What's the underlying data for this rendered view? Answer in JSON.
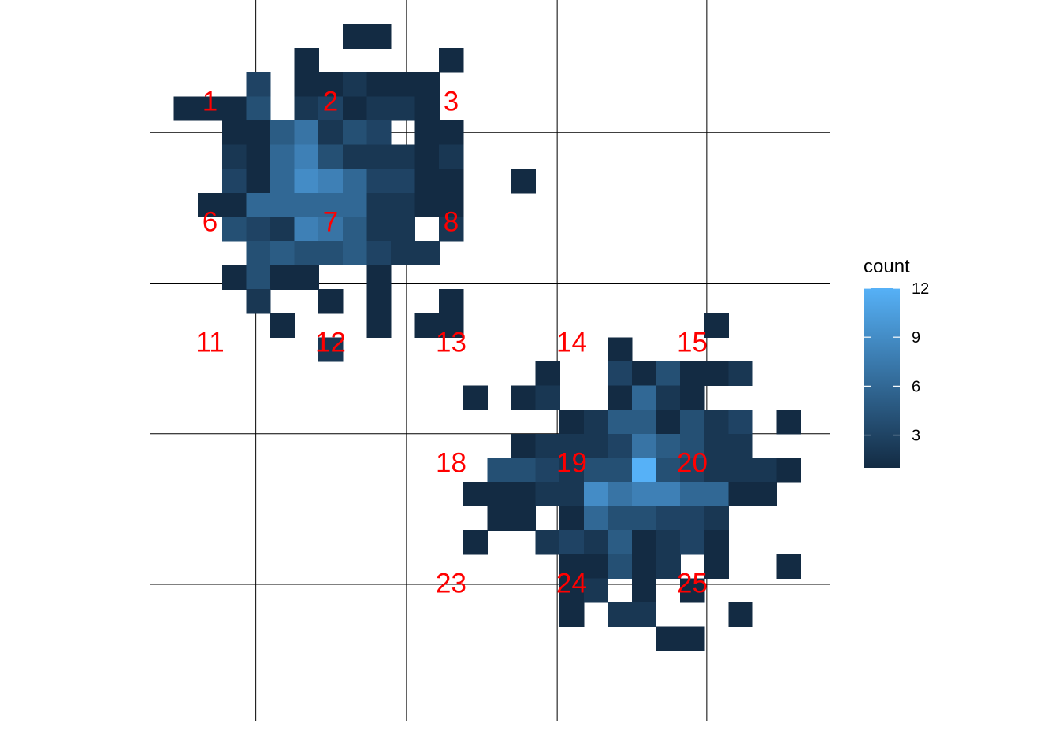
{
  "chart_data": {
    "type": "heatmap",
    "title": "",
    "xlabel": "",
    "ylabel": "",
    "axes_visible": false,
    "grid": "on",
    "x_bins": 28,
    "y_bins": 28,
    "value_range": [
      1,
      12
    ],
    "colors": {
      "low": "#132B43",
      "high": "#56B1F7",
      "label": "#ff0000",
      "grid": "#000000"
    },
    "legend": {
      "title": "count",
      "placement": "right",
      "ticks": [
        3,
        6,
        9,
        12
      ],
      "tick_labels": [
        "3",
        "6",
        "9",
        "12"
      ]
    },
    "cells": [
      {
        "col": 8,
        "row": 1,
        "value": 1
      },
      {
        "col": 9,
        "row": 1,
        "value": 1
      },
      {
        "col": 6,
        "row": 2,
        "value": 1
      },
      {
        "col": 12,
        "row": 2,
        "value": 1
      },
      {
        "col": 4,
        "row": 3,
        "value": 3
      },
      {
        "col": 6,
        "row": 3,
        "value": 1
      },
      {
        "col": 7,
        "row": 3,
        "value": 1
      },
      {
        "col": 8,
        "row": 3,
        "value": 2
      },
      {
        "col": 9,
        "row": 3,
        "value": 1
      },
      {
        "col": 10,
        "row": 3,
        "value": 1
      },
      {
        "col": 11,
        "row": 3,
        "value": 1
      },
      {
        "col": 1,
        "row": 4,
        "value": 1
      },
      {
        "col": 2,
        "row": 4,
        "value": 1
      },
      {
        "col": 3,
        "row": 4,
        "value": 1
      },
      {
        "col": 4,
        "row": 4,
        "value": 4
      },
      {
        "col": 6,
        "row": 4,
        "value": 2
      },
      {
        "col": 7,
        "row": 4,
        "value": 3
      },
      {
        "col": 8,
        "row": 4,
        "value": 1
      },
      {
        "col": 9,
        "row": 4,
        "value": 2
      },
      {
        "col": 10,
        "row": 4,
        "value": 2
      },
      {
        "col": 11,
        "row": 4,
        "value": 1
      },
      {
        "col": 3,
        "row": 5,
        "value": 1
      },
      {
        "col": 4,
        "row": 5,
        "value": 1
      },
      {
        "col": 5,
        "row": 5,
        "value": 5
      },
      {
        "col": 6,
        "row": 5,
        "value": 7
      },
      {
        "col": 7,
        "row": 5,
        "value": 2
      },
      {
        "col": 8,
        "row": 5,
        "value": 4
      },
      {
        "col": 9,
        "row": 5,
        "value": 3
      },
      {
        "col": 11,
        "row": 5,
        "value": 1
      },
      {
        "col": 12,
        "row": 5,
        "value": 1
      },
      {
        "col": 3,
        "row": 6,
        "value": 2
      },
      {
        "col": 4,
        "row": 6,
        "value": 1
      },
      {
        "col": 5,
        "row": 6,
        "value": 6
      },
      {
        "col": 6,
        "row": 6,
        "value": 8
      },
      {
        "col": 7,
        "row": 6,
        "value": 4
      },
      {
        "col": 8,
        "row": 6,
        "value": 2
      },
      {
        "col": 9,
        "row": 6,
        "value": 2
      },
      {
        "col": 10,
        "row": 6,
        "value": 2
      },
      {
        "col": 11,
        "row": 6,
        "value": 1
      },
      {
        "col": 12,
        "row": 6,
        "value": 2
      },
      {
        "col": 3,
        "row": 7,
        "value": 3
      },
      {
        "col": 4,
        "row": 7,
        "value": 1
      },
      {
        "col": 5,
        "row": 7,
        "value": 6
      },
      {
        "col": 6,
        "row": 7,
        "value": 9
      },
      {
        "col": 7,
        "row": 7,
        "value": 8
      },
      {
        "col": 8,
        "row": 7,
        "value": 6
      },
      {
        "col": 9,
        "row": 7,
        "value": 3
      },
      {
        "col": 10,
        "row": 7,
        "value": 3
      },
      {
        "col": 11,
        "row": 7,
        "value": 1
      },
      {
        "col": 12,
        "row": 7,
        "value": 1
      },
      {
        "col": 15,
        "row": 7,
        "value": 1
      },
      {
        "col": 2,
        "row": 8,
        "value": 1
      },
      {
        "col": 3,
        "row": 8,
        "value": 1
      },
      {
        "col": 4,
        "row": 8,
        "value": 6
      },
      {
        "col": 5,
        "row": 8,
        "value": 6
      },
      {
        "col": 6,
        "row": 8,
        "value": 6
      },
      {
        "col": 7,
        "row": 8,
        "value": 6
      },
      {
        "col": 8,
        "row": 8,
        "value": 6
      },
      {
        "col": 9,
        "row": 8,
        "value": 2
      },
      {
        "col": 10,
        "row": 8,
        "value": 2
      },
      {
        "col": 11,
        "row": 8,
        "value": 1
      },
      {
        "col": 12,
        "row": 8,
        "value": 1
      },
      {
        "col": 3,
        "row": 9,
        "value": 4
      },
      {
        "col": 4,
        "row": 9,
        "value": 3
      },
      {
        "col": 5,
        "row": 9,
        "value": 2
      },
      {
        "col": 6,
        "row": 9,
        "value": 8
      },
      {
        "col": 7,
        "row": 9,
        "value": 7
      },
      {
        "col": 8,
        "row": 9,
        "value": 5
      },
      {
        "col": 9,
        "row": 9,
        "value": 2
      },
      {
        "col": 10,
        "row": 9,
        "value": 2
      },
      {
        "col": 12,
        "row": 9,
        "value": 2
      },
      {
        "col": 4,
        "row": 10,
        "value": 4
      },
      {
        "col": 5,
        "row": 10,
        "value": 5
      },
      {
        "col": 6,
        "row": 10,
        "value": 4
      },
      {
        "col": 7,
        "row": 10,
        "value": 4
      },
      {
        "col": 8,
        "row": 10,
        "value": 5
      },
      {
        "col": 9,
        "row": 10,
        "value": 3
      },
      {
        "col": 10,
        "row": 10,
        "value": 2
      },
      {
        "col": 11,
        "row": 10,
        "value": 2
      },
      {
        "col": 3,
        "row": 11,
        "value": 1
      },
      {
        "col": 4,
        "row": 11,
        "value": 4
      },
      {
        "col": 5,
        "row": 11,
        "value": 1
      },
      {
        "col": 6,
        "row": 11,
        "value": 1
      },
      {
        "col": 9,
        "row": 11,
        "value": 1
      },
      {
        "col": 4,
        "row": 12,
        "value": 2
      },
      {
        "col": 7,
        "row": 12,
        "value": 1
      },
      {
        "col": 9,
        "row": 12,
        "value": 1
      },
      {
        "col": 12,
        "row": 12,
        "value": 1
      },
      {
        "col": 5,
        "row": 13,
        "value": 1
      },
      {
        "col": 9,
        "row": 13,
        "value": 1
      },
      {
        "col": 11,
        "row": 13,
        "value": 1
      },
      {
        "col": 12,
        "row": 13,
        "value": 1
      },
      {
        "col": 23,
        "row": 13,
        "value": 1
      },
      {
        "col": 7,
        "row": 14,
        "value": 2
      },
      {
        "col": 19,
        "row": 14,
        "value": 1
      },
      {
        "col": 16,
        "row": 15,
        "value": 1
      },
      {
        "col": 19,
        "row": 15,
        "value": 3
      },
      {
        "col": 20,
        "row": 15,
        "value": 1
      },
      {
        "col": 21,
        "row": 15,
        "value": 4
      },
      {
        "col": 22,
        "row": 15,
        "value": 1
      },
      {
        "col": 23,
        "row": 15,
        "value": 1
      },
      {
        "col": 24,
        "row": 15,
        "value": 2
      },
      {
        "col": 13,
        "row": 16,
        "value": 1
      },
      {
        "col": 15,
        "row": 16,
        "value": 1
      },
      {
        "col": 16,
        "row": 16,
        "value": 2
      },
      {
        "col": 19,
        "row": 16,
        "value": 1
      },
      {
        "col": 20,
        "row": 16,
        "value": 6
      },
      {
        "col": 21,
        "row": 16,
        "value": 2
      },
      {
        "col": 22,
        "row": 16,
        "value": 1
      },
      {
        "col": 17,
        "row": 17,
        "value": 1
      },
      {
        "col": 18,
        "row": 17,
        "value": 2
      },
      {
        "col": 19,
        "row": 17,
        "value": 5
      },
      {
        "col": 20,
        "row": 17,
        "value": 5
      },
      {
        "col": 21,
        "row": 17,
        "value": 1
      },
      {
        "col": 22,
        "row": 17,
        "value": 4
      },
      {
        "col": 23,
        "row": 17,
        "value": 2
      },
      {
        "col": 24,
        "row": 17,
        "value": 3
      },
      {
        "col": 26,
        "row": 17,
        "value": 1
      },
      {
        "col": 15,
        "row": 18,
        "value": 1
      },
      {
        "col": 16,
        "row": 18,
        "value": 2
      },
      {
        "col": 17,
        "row": 18,
        "value": 2
      },
      {
        "col": 18,
        "row": 18,
        "value": 2
      },
      {
        "col": 19,
        "row": 18,
        "value": 3
      },
      {
        "col": 20,
        "row": 18,
        "value": 7
      },
      {
        "col": 21,
        "row": 18,
        "value": 5
      },
      {
        "col": 22,
        "row": 18,
        "value": 4
      },
      {
        "col": 23,
        "row": 18,
        "value": 2
      },
      {
        "col": 24,
        "row": 18,
        "value": 2
      },
      {
        "col": 14,
        "row": 19,
        "value": 4
      },
      {
        "col": 15,
        "row": 19,
        "value": 4
      },
      {
        "col": 16,
        "row": 19,
        "value": 3
      },
      {
        "col": 17,
        "row": 19,
        "value": 2
      },
      {
        "col": 18,
        "row": 19,
        "value": 4
      },
      {
        "col": 19,
        "row": 19,
        "value": 4
      },
      {
        "col": 20,
        "row": 19,
        "value": 12
      },
      {
        "col": 21,
        "row": 19,
        "value": 4
      },
      {
        "col": 22,
        "row": 19,
        "value": 3
      },
      {
        "col": 23,
        "row": 19,
        "value": 2
      },
      {
        "col": 24,
        "row": 19,
        "value": 2
      },
      {
        "col": 25,
        "row": 19,
        "value": 2
      },
      {
        "col": 26,
        "row": 19,
        "value": 1
      },
      {
        "col": 13,
        "row": 20,
        "value": 1
      },
      {
        "col": 14,
        "row": 20,
        "value": 1
      },
      {
        "col": 15,
        "row": 20,
        "value": 1
      },
      {
        "col": 16,
        "row": 20,
        "value": 2
      },
      {
        "col": 17,
        "row": 20,
        "value": 2
      },
      {
        "col": 18,
        "row": 20,
        "value": 9
      },
      {
        "col": 19,
        "row": 20,
        "value": 7
      },
      {
        "col": 20,
        "row": 20,
        "value": 8
      },
      {
        "col": 21,
        "row": 20,
        "value": 8
      },
      {
        "col": 22,
        "row": 20,
        "value": 6
      },
      {
        "col": 23,
        "row": 20,
        "value": 6
      },
      {
        "col": 24,
        "row": 20,
        "value": 1
      },
      {
        "col": 25,
        "row": 20,
        "value": 1
      },
      {
        "col": 14,
        "row": 21,
        "value": 1
      },
      {
        "col": 15,
        "row": 21,
        "value": 1
      },
      {
        "col": 17,
        "row": 21,
        "value": 1
      },
      {
        "col": 18,
        "row": 21,
        "value": 6
      },
      {
        "col": 19,
        "row": 21,
        "value": 4
      },
      {
        "col": 20,
        "row": 21,
        "value": 4
      },
      {
        "col": 21,
        "row": 21,
        "value": 3
      },
      {
        "col": 22,
        "row": 21,
        "value": 3
      },
      {
        "col": 23,
        "row": 21,
        "value": 2
      },
      {
        "col": 13,
        "row": 22,
        "value": 1
      },
      {
        "col": 16,
        "row": 22,
        "value": 2
      },
      {
        "col": 17,
        "row": 22,
        "value": 3
      },
      {
        "col": 18,
        "row": 22,
        "value": 2
      },
      {
        "col": 19,
        "row": 22,
        "value": 5
      },
      {
        "col": 20,
        "row": 22,
        "value": 1
      },
      {
        "col": 21,
        "row": 22,
        "value": 2
      },
      {
        "col": 22,
        "row": 22,
        "value": 3
      },
      {
        "col": 23,
        "row": 22,
        "value": 1
      },
      {
        "col": 17,
        "row": 23,
        "value": 1
      },
      {
        "col": 18,
        "row": 23,
        "value": 1
      },
      {
        "col": 19,
        "row": 23,
        "value": 4
      },
      {
        "col": 20,
        "row": 23,
        "value": 1
      },
      {
        "col": 21,
        "row": 23,
        "value": 2
      },
      {
        "col": 23,
        "row": 23,
        "value": 1
      },
      {
        "col": 26,
        "row": 23,
        "value": 1
      },
      {
        "col": 17,
        "row": 24,
        "value": 1
      },
      {
        "col": 18,
        "row": 24,
        "value": 2
      },
      {
        "col": 20,
        "row": 24,
        "value": 1
      },
      {
        "col": 22,
        "row": 24,
        "value": 1
      },
      {
        "col": 17,
        "row": 25,
        "value": 1
      },
      {
        "col": 19,
        "row": 25,
        "value": 2
      },
      {
        "col": 20,
        "row": 25,
        "value": 2
      },
      {
        "col": 24,
        "row": 25,
        "value": 1
      },
      {
        "col": 21,
        "row": 26,
        "value": 1
      },
      {
        "col": 22,
        "row": 26,
        "value": 1
      }
    ],
    "annotations": [
      {
        "text": "1",
        "col": 2.5,
        "row": 4.2
      },
      {
        "text": "2",
        "col": 7.5,
        "row": 4.2
      },
      {
        "text": "3",
        "col": 12.5,
        "row": 4.2
      },
      {
        "text": "6",
        "col": 2.5,
        "row": 9.2
      },
      {
        "text": "7",
        "col": 7.5,
        "row": 9.2
      },
      {
        "text": "8",
        "col": 12.5,
        "row": 9.2
      },
      {
        "text": "11",
        "col": 2.5,
        "row": 14.2
      },
      {
        "text": "12",
        "col": 7.5,
        "row": 14.2
      },
      {
        "text": "13",
        "col": 12.5,
        "row": 14.2
      },
      {
        "text": "14",
        "col": 17.5,
        "row": 14.2
      },
      {
        "text": "15",
        "col": 22.5,
        "row": 14.2
      },
      {
        "text": "18",
        "col": 12.5,
        "row": 19.2
      },
      {
        "text": "19",
        "col": 17.5,
        "row": 19.2
      },
      {
        "text": "20",
        "col": 22.5,
        "row": 19.2
      },
      {
        "text": "23",
        "col": 12.5,
        "row": 24.2
      },
      {
        "text": "24",
        "col": 17.5,
        "row": 24.2
      },
      {
        "text": "25",
        "col": 22.5,
        "row": 24.2
      }
    ],
    "grid_lines": {
      "x": [
        4.4,
        10.65,
        16.9,
        23.1
      ],
      "y": [
        5.5,
        11.75,
        18.0,
        24.25
      ]
    }
  }
}
